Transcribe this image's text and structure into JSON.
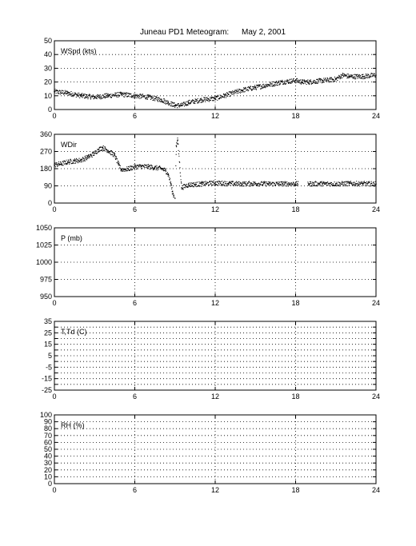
{
  "title": "Juneau PD1 Meteogram:",
  "date": "May  2, 2001",
  "chart_data": [
    {
      "type": "scatter",
      "label": "WSpd (kts)",
      "xlim": [
        0,
        24
      ],
      "ylim": [
        0,
        50
      ],
      "xticks": [
        "0",
        "6",
        "12",
        "18",
        "24"
      ],
      "yticks": [
        "0",
        "10",
        "20",
        "30",
        "40",
        "50"
      ],
      "grid": true,
      "series": [
        {
          "x": [
            0,
            1,
            2,
            3,
            4,
            5,
            6,
            7,
            8,
            8.5,
            9,
            9.5,
            10,
            11,
            12,
            13,
            14,
            15,
            16,
            17,
            18,
            18.5,
            19,
            20,
            21,
            21.5,
            22,
            23,
            24
          ],
          "values": [
            13,
            12,
            10,
            9,
            10,
            11,
            10,
            9,
            7,
            5,
            3,
            3,
            5,
            7,
            8,
            11,
            14,
            16,
            18,
            20,
            21,
            20,
            20,
            21,
            22,
            25,
            24,
            24,
            25
          ]
        }
      ]
    },
    {
      "type": "scatter",
      "label": "WDir",
      "xlim": [
        0,
        24
      ],
      "ylim": [
        0,
        360
      ],
      "xticks": [
        "0",
        "6",
        "12",
        "18",
        "24"
      ],
      "yticks": [
        "0",
        "90",
        "180",
        "270",
        "360"
      ],
      "grid": true,
      "series": [
        {
          "x": [
            0,
            0.5,
            1,
            1.5,
            2,
            2.5,
            3,
            3.3,
            3.6,
            4,
            4.5,
            4.8,
            5,
            5.5,
            6,
            6.5,
            7,
            7.5,
            8,
            8.3,
            8.5,
            8.7,
            8.8,
            8.9,
            9,
            9.1,
            9.2,
            9.5,
            9.8,
            10,
            11,
            12,
            13,
            14,
            15,
            16,
            17,
            18,
            19,
            20,
            21,
            22,
            23,
            24
          ],
          "values": [
            200,
            205,
            215,
            220,
            225,
            240,
            260,
            280,
            290,
            275,
            250,
            200,
            175,
            178,
            190,
            192,
            190,
            185,
            180,
            170,
            150,
            100,
            60,
            40,
            25,
            300,
            330,
            80,
            90,
            95,
            100,
            105,
            102,
            100,
            102,
            100,
            101,
            100,
            100,
            101,
            100,
            102,
            101,
            100
          ]
        }
      ]
    },
    {
      "type": "scatter",
      "label": "P (mb)",
      "xlim": [
        0,
        24
      ],
      "ylim": [
        950,
        1050
      ],
      "xticks": [
        "0",
        "6",
        "12",
        "18",
        "24"
      ],
      "yticks": [
        "950",
        "975",
        "1000",
        "1025",
        "1050"
      ],
      "grid": true,
      "series": []
    },
    {
      "type": "scatter",
      "label": "T,Td (C)",
      "xlim": [
        0,
        24
      ],
      "ylim": [
        -25,
        35
      ],
      "xticks": [
        "0",
        "6",
        "12",
        "18",
        "24"
      ],
      "yticks": [
        "-25",
        "-15",
        "-5",
        "5",
        "15",
        "25",
        "35"
      ],
      "ytick_values": [
        -25,
        -20,
        -15,
        -10,
        -5,
        0,
        5,
        10,
        15,
        20,
        25,
        30,
        35
      ],
      "grid": true,
      "series": []
    },
    {
      "type": "scatter",
      "label": "RH (%)",
      "xlim": [
        0,
        24
      ],
      "ylim": [
        0,
        100
      ],
      "xticks": [
        "0",
        "6",
        "12",
        "18",
        "24"
      ],
      "yticks": [
        "0",
        "10",
        "20",
        "30",
        "40",
        "50",
        "60",
        "70",
        "80",
        "90",
        "100"
      ],
      "grid": true,
      "series": []
    }
  ]
}
